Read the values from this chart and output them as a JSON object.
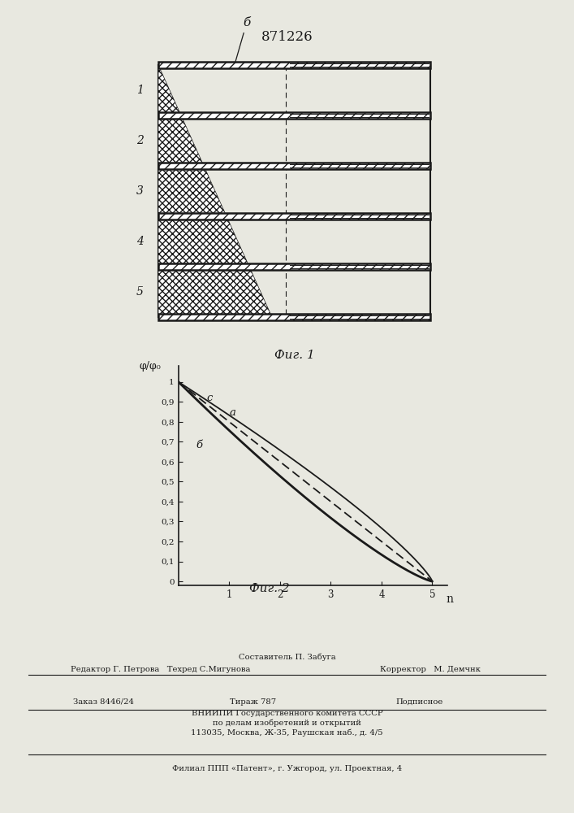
{
  "patent_number": "871226",
  "bg_color": "#e8e8e0",
  "line_color": "#1a1a1a",
  "fig1_caption": "Фиг. 1",
  "fig2_caption": "Фиг. 2",
  "fig2_ylabel": "φ/φ₀",
  "fig2_xlabel": "n",
  "fig2_ytick_labels": [
    "0",
    "0,1",
    "0,2",
    "0,3",
    "0,4",
    "0,5",
    "0,6",
    "0,7",
    "0,8",
    "0,9",
    "1"
  ],
  "fig2_ytick_vals": [
    0,
    0.1,
    0.2,
    0.3,
    0.4,
    0.5,
    0.6,
    0.7,
    0.8,
    0.9,
    1.0
  ],
  "fig2_xtick_vals": [
    1,
    2,
    3,
    4,
    5
  ],
  "fig2_xtick_labels": [
    "1",
    "2",
    "3",
    "4",
    "5"
  ],
  "curve_c_power": 0.82,
  "curve_a_power": 1.0,
  "curve_b_power": 1.25,
  "footer_line1": "Составитель П. Забуга",
  "footer_line2": "Редактор Г. Петрова   Техред С.Мигунова",
  "footer_corrector": "Корректор   М. Демчнк",
  "footer_line3a": "Заказ 8446/24",
  "footer_line3b": "Тираж 787",
  "footer_line3c": "Подписное",
  "footer_line4": "ВНИИПИ Государственного комитета СССР",
  "footer_line5": "по делам изобретений и открытий",
  "footer_line6": "113035, Москва, Ж-35, Раушская наб., д. 4/5",
  "footer_line7": "Филиал ППП «Патент», г. Ужгород, ул. Проектная, 4"
}
